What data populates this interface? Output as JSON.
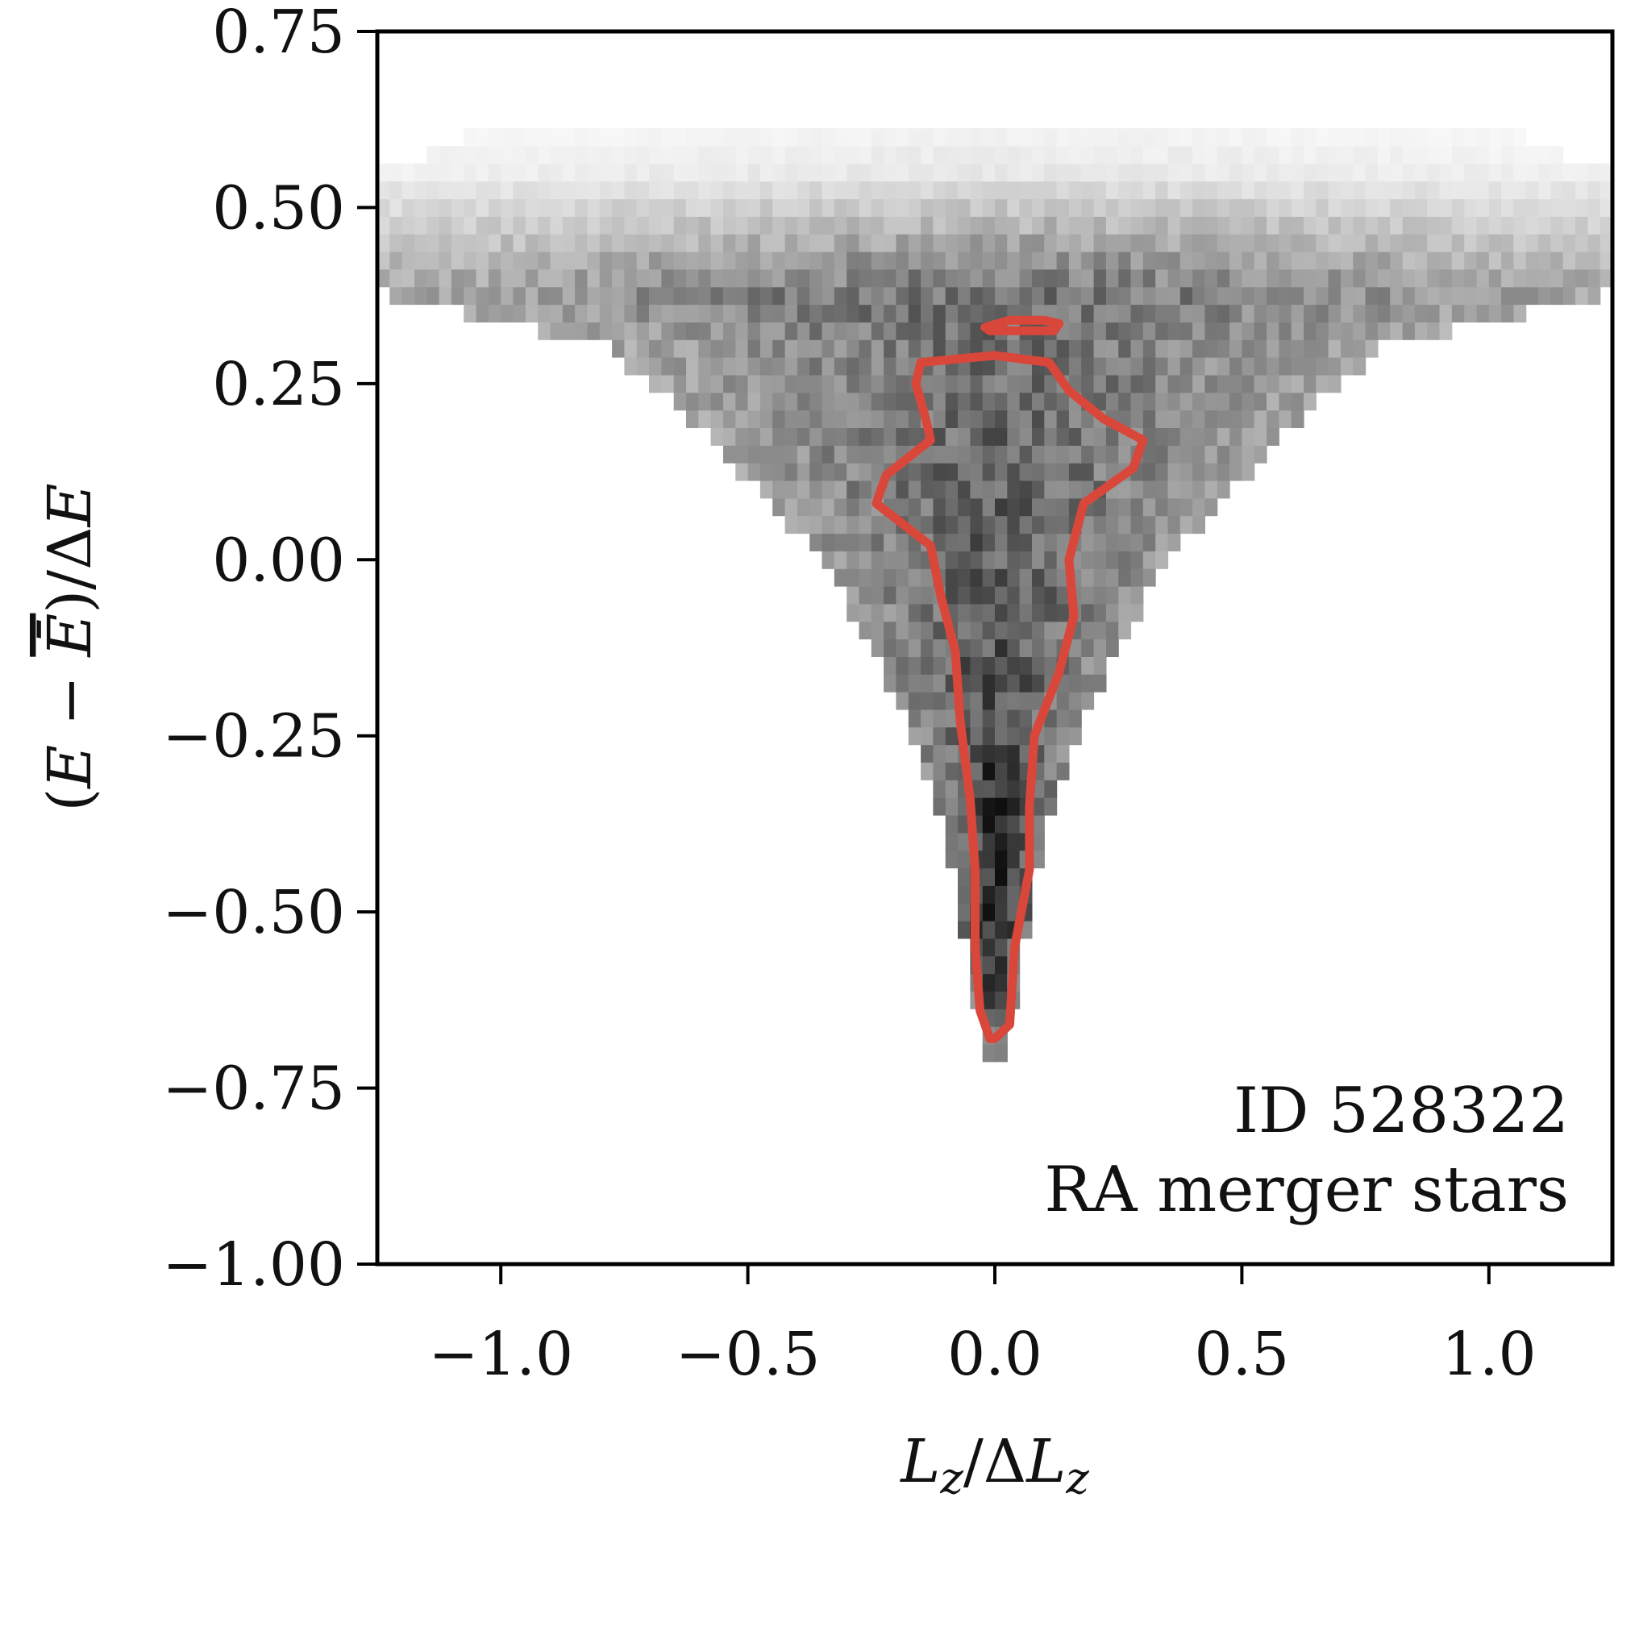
{
  "chart_data": {
    "type": "heatmap",
    "title": "",
    "xlabel": "L_z/ΔL_z",
    "ylabel": "(E − Ē)/ΔE",
    "xlim": [
      -1.25,
      1.25
    ],
    "ylim": [
      -1.0,
      0.75
    ],
    "x_ticks": [
      -1.0,
      -0.5,
      0.0,
      0.5,
      1.0
    ],
    "x_tick_labels": [
      "−1.0",
      "−0.5",
      "0.0",
      "0.5",
      "1.0"
    ],
    "y_ticks": [
      0.75,
      0.5,
      0.25,
      0.0,
      -0.25,
      -0.5,
      -0.75,
      -1.0
    ],
    "y_tick_labels": [
      "0.75",
      "0.50",
      "0.25",
      "0.00",
      "−0.25",
      "−0.50",
      "−0.75",
      "−1.00"
    ],
    "grid": false,
    "colormap": "greys",
    "annotations": [
      "ID 528322",
      "RA merger stars"
    ],
    "annotation_position": "bottom-right",
    "density_profile": {
      "description_rows": "half-width in L_z/ΔL_z of the occupied region at each energy level",
      "levels": [
        {
          "y": -0.7,
          "halfwidth": 0.02,
          "intensity": 0.55
        },
        {
          "y": -0.6,
          "halfwidth": 0.05,
          "intensity": 0.85
        },
        {
          "y": -0.5,
          "halfwidth": 0.07,
          "intensity": 0.95
        },
        {
          "y": -0.4,
          "halfwidth": 0.1,
          "intensity": 0.88
        },
        {
          "y": -0.3,
          "halfwidth": 0.14,
          "intensity": 0.8
        },
        {
          "y": -0.2,
          "halfwidth": 0.2,
          "intensity": 0.74
        },
        {
          "y": -0.1,
          "halfwidth": 0.27,
          "intensity": 0.7
        },
        {
          "y": 0.0,
          "halfwidth": 0.35,
          "intensity": 0.68
        },
        {
          "y": 0.1,
          "halfwidth": 0.48,
          "intensity": 0.66
        },
        {
          "y": 0.2,
          "halfwidth": 0.62,
          "intensity": 0.62
        },
        {
          "y": 0.3,
          "halfwidth": 0.78,
          "intensity": 0.6
        },
        {
          "y": 0.38,
          "halfwidth": 1.25,
          "intensity": 0.6
        },
        {
          "y": 0.46,
          "halfwidth": 1.25,
          "intensity": 0.35
        },
        {
          "y": 0.55,
          "halfwidth": 1.25,
          "intensity": 0.1
        },
        {
          "y": 0.62,
          "halfwidth": 1.0,
          "intensity": 0.04
        }
      ]
    },
    "contour": {
      "color": "#d9473b",
      "main_outline": [
        [
          0.0,
          -0.68
        ],
        [
          0.03,
          -0.66
        ],
        [
          0.04,
          -0.55
        ],
        [
          0.07,
          -0.44
        ],
        [
          0.07,
          -0.35
        ],
        [
          0.08,
          -0.25
        ],
        [
          0.13,
          -0.16
        ],
        [
          0.16,
          -0.08
        ],
        [
          0.15,
          0.0
        ],
        [
          0.18,
          0.08
        ],
        [
          0.28,
          0.13
        ],
        [
          0.3,
          0.17
        ],
        [
          0.22,
          0.2
        ],
        [
          0.15,
          0.24
        ],
        [
          0.11,
          0.28
        ],
        [
          0.0,
          0.29
        ],
        [
          -0.15,
          0.28
        ],
        [
          -0.16,
          0.25
        ],
        [
          -0.14,
          0.2
        ],
        [
          -0.13,
          0.17
        ],
        [
          -0.22,
          0.12
        ],
        [
          -0.24,
          0.08
        ],
        [
          -0.13,
          0.02
        ],
        [
          -0.11,
          -0.05
        ],
        [
          -0.08,
          -0.13
        ],
        [
          -0.07,
          -0.23
        ],
        [
          -0.05,
          -0.34
        ],
        [
          -0.04,
          -0.44
        ],
        [
          -0.04,
          -0.55
        ],
        [
          -0.03,
          -0.64
        ],
        [
          -0.01,
          -0.68
        ]
      ],
      "upper_island": [
        [
          -0.02,
          0.33
        ],
        [
          0.03,
          0.34
        ],
        [
          0.1,
          0.34
        ],
        [
          0.13,
          0.335
        ],
        [
          0.12,
          0.325
        ],
        [
          0.05,
          0.325
        ],
        [
          -0.01,
          0.325
        ],
        [
          -0.02,
          0.33
        ]
      ]
    }
  }
}
